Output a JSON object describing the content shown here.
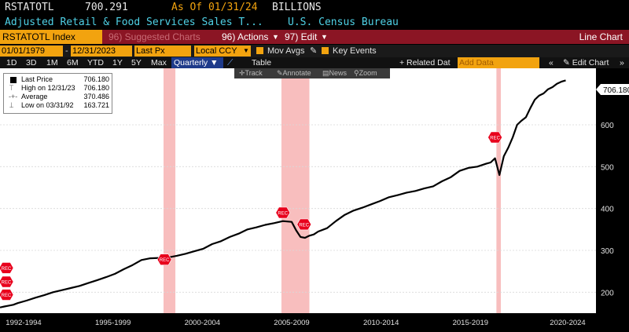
{
  "header": {
    "ticker": "RSTATOTL",
    "price": "700.291",
    "as_of": "As Of 01/31/24",
    "units": "BILLIONS",
    "description": "Adjusted Retail & Food Services Sales T...",
    "source": "U.S. Census Bureau"
  },
  "command_bar": {
    "security": "RSTATOTL Index",
    "suggested": "96) Suggested Charts",
    "actions": "96) Actions",
    "edit": "97) Edit",
    "view_title": "Line Chart"
  },
  "params": {
    "start_date": "01/01/1979",
    "end_date": "12/31/2023",
    "field": "Last Px",
    "currency": "Local CCY",
    "mov_avgs": "Mov Avgs",
    "key_events": "Key Events"
  },
  "toolbar": {
    "ranges": [
      "1D",
      "3D",
      "1M",
      "6M",
      "YTD",
      "1Y",
      "5Y",
      "Max"
    ],
    "period": "Quarterly",
    "table": "Table",
    "related": "+ Related Dat",
    "add_data": "Add Data",
    "edit_chart": "Edit Chart"
  },
  "chart_tools": [
    "Track",
    "Annotate",
    "News",
    "Zoom"
  ],
  "legend": {
    "last_price_label": "Last Price",
    "last_price": "706.180",
    "high_label": "High on 12/31/23",
    "high": "706.180",
    "average_label": "Average",
    "average": "370.486",
    "low_label": "Low on 03/31/92",
    "low": "163.721"
  },
  "colors": {
    "line": "#000000",
    "background": "#ffffff",
    "recession": "#f7b3b3",
    "marker": "#e8001c",
    "highlight": "#f2a30f",
    "header_bar": "#8b1524"
  },
  "chart_data": {
    "type": "line",
    "title": "",
    "xlabel": "",
    "ylabel": "",
    "x_tick_labels": [
      "1992-1994",
      "1995-1999",
      "2000-2004",
      "2005-2009",
      "2010-2014",
      "2015-2019",
      "2020-2024"
    ],
    "y_ticks": [
      200,
      300,
      400,
      500,
      600
    ],
    "ylim": [
      150,
      735
    ],
    "xlim": [
      1992.0,
      2025.0
    ],
    "last_value_label": "706.180",
    "recession_shading": [
      [
        2001.25,
        2001.92
      ],
      [
        2007.92,
        2009.5
      ],
      [
        2020.08,
        2020.33
      ]
    ],
    "event_markers": [
      {
        "label": "REC",
        "x": 1992.0,
        "y": 258
      },
      {
        "label": "REC",
        "x": 1992.0,
        "y": 225
      },
      {
        "label": "REC",
        "x": 1992.0,
        "y": 194
      },
      {
        "label": "REC",
        "x": 2001.3,
        "y": 278
      },
      {
        "label": "REC",
        "x": 2008.0,
        "y": 390
      },
      {
        "label": "REC",
        "x": 2009.2,
        "y": 362
      },
      {
        "label": "REC",
        "x": 2020.0,
        "y": 570
      }
    ],
    "series": [
      {
        "name": "Last Price",
        "x": [
          1992.0,
          1992.25,
          1992.5,
          1992.75,
          1993.0,
          1993.5,
          1994.0,
          1994.5,
          1995.0,
          1995.5,
          1996.0,
          1996.5,
          1997.0,
          1997.5,
          1998.0,
          1998.5,
          1999.0,
          1999.5,
          2000.0,
          2000.5,
          2001.0,
          2001.5,
          2002.0,
          2002.5,
          2003.0,
          2003.5,
          2004.0,
          2004.5,
          2005.0,
          2005.5,
          2006.0,
          2006.5,
          2007.0,
          2007.5,
          2008.0,
          2008.5,
          2008.75,
          2009.0,
          2009.25,
          2009.5,
          2009.75,
          2010.0,
          2010.5,
          2011.0,
          2011.5,
          2012.0,
          2012.5,
          2013.0,
          2013.5,
          2014.0,
          2014.5,
          2015.0,
          2015.5,
          2016.0,
          2016.5,
          2017.0,
          2017.5,
          2018.0,
          2018.5,
          2019.0,
          2019.5,
          2019.75,
          2020.0,
          2020.25,
          2020.5,
          2020.75,
          2021.0,
          2021.25,
          2021.5,
          2021.75,
          2022.0,
          2022.25,
          2022.5,
          2022.75,
          2023.0,
          2023.25,
          2023.5,
          2023.75,
          2024.0
        ],
        "values": [
          163.7,
          166,
          168,
          170,
          174,
          180,
          187,
          193,
          200,
          205,
          210,
          215,
          222,
          229,
          236,
          244,
          255,
          265,
          277,
          281,
          282,
          283,
          287,
          292,
          298,
          304,
          315,
          322,
          332,
          340,
          350,
          355,
          361,
          365,
          370,
          368,
          348,
          332,
          330,
          335,
          338,
          345,
          353,
          370,
          385,
          395,
          402,
          410,
          418,
          427,
          432,
          438,
          442,
          448,
          453,
          465,
          475,
          490,
          497,
          500,
          507,
          510,
          520,
          480,
          525,
          545,
          570,
          600,
          610,
          618,
          640,
          660,
          670,
          675,
          685,
          690,
          698,
          703,
          706.18
        ]
      }
    ]
  }
}
